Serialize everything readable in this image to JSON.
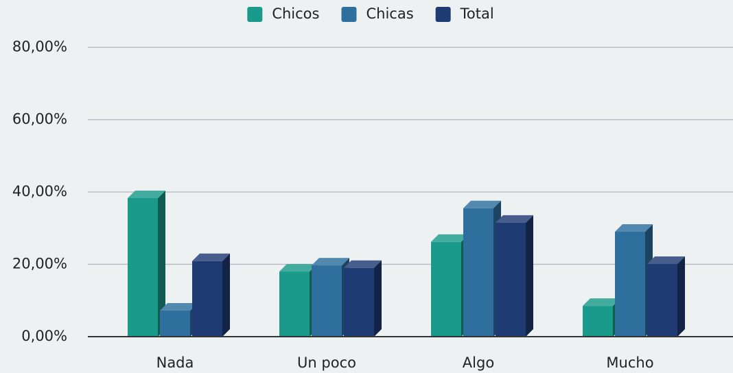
{
  "chart_data": {
    "type": "bar3d",
    "categories": [
      "Nada",
      "Un poco",
      "Algo",
      "Mucho"
    ],
    "series": [
      {
        "name": "Chicos",
        "color": "#1a9a8a",
        "values": [
          38.3,
          18.0,
          26.2,
          8.5
        ]
      },
      {
        "name": "Chicas",
        "color": "#2e6f9e",
        "values": [
          7.2,
          19.7,
          35.5,
          29.0
        ]
      },
      {
        "name": "Total",
        "color": "#1f3b73",
        "values": [
          20.9,
          19.0,
          31.5,
          20.1
        ]
      }
    ],
    "ylim": [
      0,
      80
    ],
    "yticks": [
      {
        "value": 0,
        "label": "0,00%"
      },
      {
        "value": 20,
        "label": "20,00%"
      },
      {
        "value": 40,
        "label": "40,00%"
      },
      {
        "value": 60,
        "label": "60,00%"
      },
      {
        "value": 80,
        "label": "80,00%"
      }
    ],
    "grid": true,
    "legend": "top"
  }
}
